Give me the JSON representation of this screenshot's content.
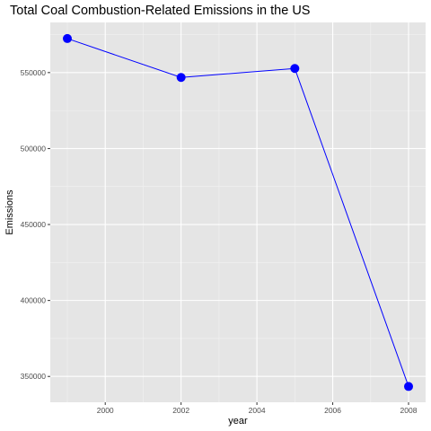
{
  "chart_data": {
    "type": "line",
    "title": "Total Coal Combustion-Related Emissions in the US",
    "xlabel": "year",
    "ylabel": "Emissions",
    "x": [
      1999,
      2002,
      2005,
      2008
    ],
    "series": [
      {
        "values": [
          572400,
          546800,
          552700,
          343400
        ]
      }
    ],
    "xlim": [
      1998.55,
      2008.45
    ],
    "ylim": [
      333000,
      583000
    ],
    "xticks": [
      2000,
      2002,
      2004,
      2006,
      2008
    ],
    "yticks": [
      350000,
      400000,
      450000,
      500000,
      550000
    ],
    "xtick_labels": [
      "2000",
      "2002",
      "2004",
      "2006",
      "2008"
    ],
    "ytick_labels": [
      "350000",
      "400000",
      "450000",
      "500000",
      "550000"
    ],
    "grid": true,
    "legend": "none",
    "colors": {
      "panel": "#e5e5e5",
      "grid_major": "#ffffff",
      "line": "#0000ff",
      "point": "#0000ff"
    }
  }
}
